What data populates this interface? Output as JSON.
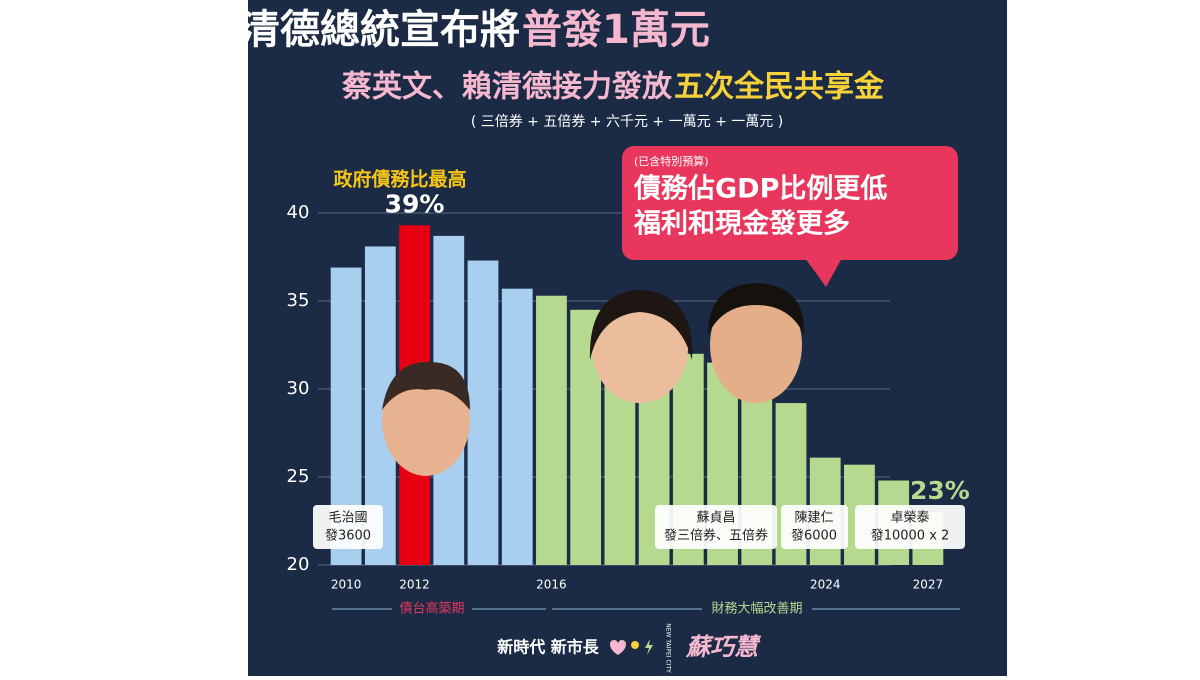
{
  "chart_data": {
    "type": "bar",
    "title": "賴清德總統宣布將",
    "title_highlight": "普發1萬元",
    "subtitle": "蔡英文、賴清德接力發放",
    "subtitle_highlight": "五次全民共享金",
    "note": "( 三倍券 + 五倍券 + 六千元 + 一萬元 + 一萬元 )",
    "categories": [
      "2010",
      null,
      "2012",
      null,
      null,
      null,
      "2016",
      null,
      null,
      null,
      null,
      null,
      null,
      null,
      "2024",
      null,
      null,
      "2027"
    ],
    "values": [
      36.9,
      38.1,
      39.3,
      38.7,
      37.3,
      35.7,
      35.3,
      34.5,
      33.5,
      33.0,
      32.0,
      31.5,
      30.5,
      29.2,
      26.1,
      25.7,
      24.8,
      23.0
    ],
    "value_labels": [
      null,
      null,
      "39%",
      null,
      null,
      null,
      null,
      null,
      null,
      null,
      null,
      null,
      null,
      null,
      null,
      null,
      null,
      "23%"
    ],
    "colors": [
      "#a8cff0",
      "#a8cff0",
      "#e60012",
      "#a8cff0",
      "#a8cff0",
      "#a8cff0",
      "#b5d98f",
      "#b5d98f",
      "#b5d98f",
      "#b5d98f",
      "#b5d98f",
      "#b5d98f",
      "#b5d98f",
      "#b5d98f",
      "#b5d98f",
      "#b5d98f",
      "#b5d98f",
      "#b5d98f"
    ],
    "ylim": [
      20,
      40
    ],
    "yticks": [
      20,
      25,
      30,
      35,
      40
    ],
    "grid": true,
    "annotations": {
      "peak": "政府債務比最高",
      "bubble_note": "(已含特別預算)",
      "bubble_line1": "債務佔GDP比例更低",
      "bubble_line2": "福利和現金發更多",
      "box1": [
        "毛治國",
        "發3600"
      ],
      "box2": [
        "蘇貞昌",
        "發三倍券、五倍券"
      ],
      "box3": [
        "陳建仁",
        "發6000"
      ],
      "box4": [
        "卓榮泰",
        "發10000 x 2"
      ],
      "period1": "債台高築期",
      "period2": "財務大幅改善期"
    },
    "footer": {
      "slogan": "新時代 新市長",
      "name": "蘇巧慧",
      "city": "NEW TAIPEI CITY"
    }
  }
}
